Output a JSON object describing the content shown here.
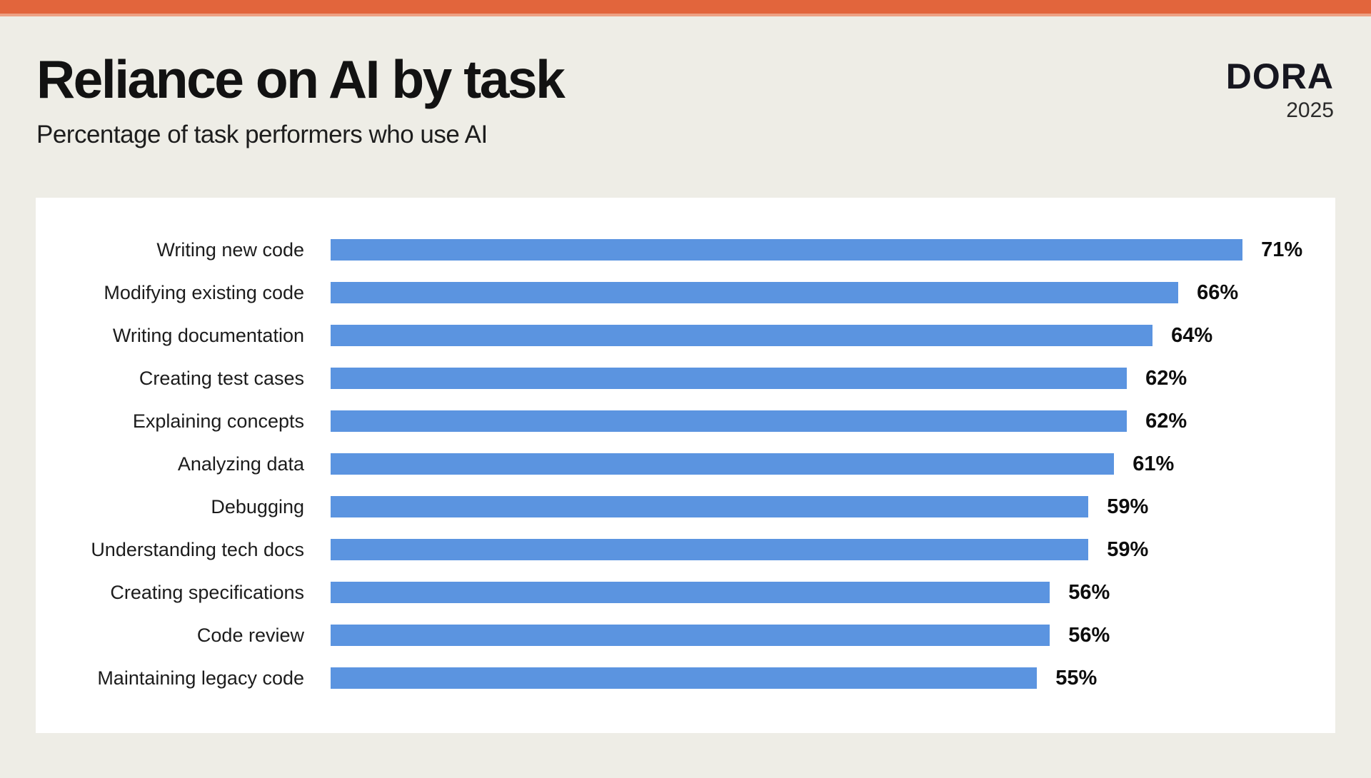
{
  "page": {
    "title": "Reliance on AI by task",
    "subtitle": "Percentage of task performers who use AI",
    "logo": {
      "brand": "DORA",
      "year": "2025"
    }
  },
  "colors": {
    "accent_orange": "#E2653C",
    "accent_orange_light": "#ECA184",
    "background": "#EEEDE6",
    "card_background": "#FFFFFF",
    "bar_blue": "#5B94E0",
    "text": "#121212"
  },
  "chart_data": {
    "type": "bar",
    "orientation": "horizontal",
    "title": "Reliance on AI by task",
    "subtitle": "Percentage of task performers who use AI",
    "xlabel": "",
    "ylabel": "",
    "xlim": [
      0,
      76
    ],
    "grid": false,
    "legend": false,
    "bar_color": "#5B94E0",
    "value_label_position": "end-of-bar",
    "categories": [
      "Writing new code",
      "Modifying existing code",
      "Writing documentation",
      "Creating test cases",
      "Explaining concepts",
      "Analyzing data",
      "Debugging",
      "Understanding tech docs",
      "Creating specifications",
      "Code review",
      "Maintaining legacy code"
    ],
    "values": [
      71,
      66,
      64,
      62,
      62,
      61,
      59,
      59,
      56,
      56,
      55
    ],
    "value_display": [
      "71%",
      "66%",
      "64%",
      "62%",
      "62%",
      "61%",
      "59%",
      "59%",
      "56%",
      "56%",
      "55%"
    ]
  }
}
